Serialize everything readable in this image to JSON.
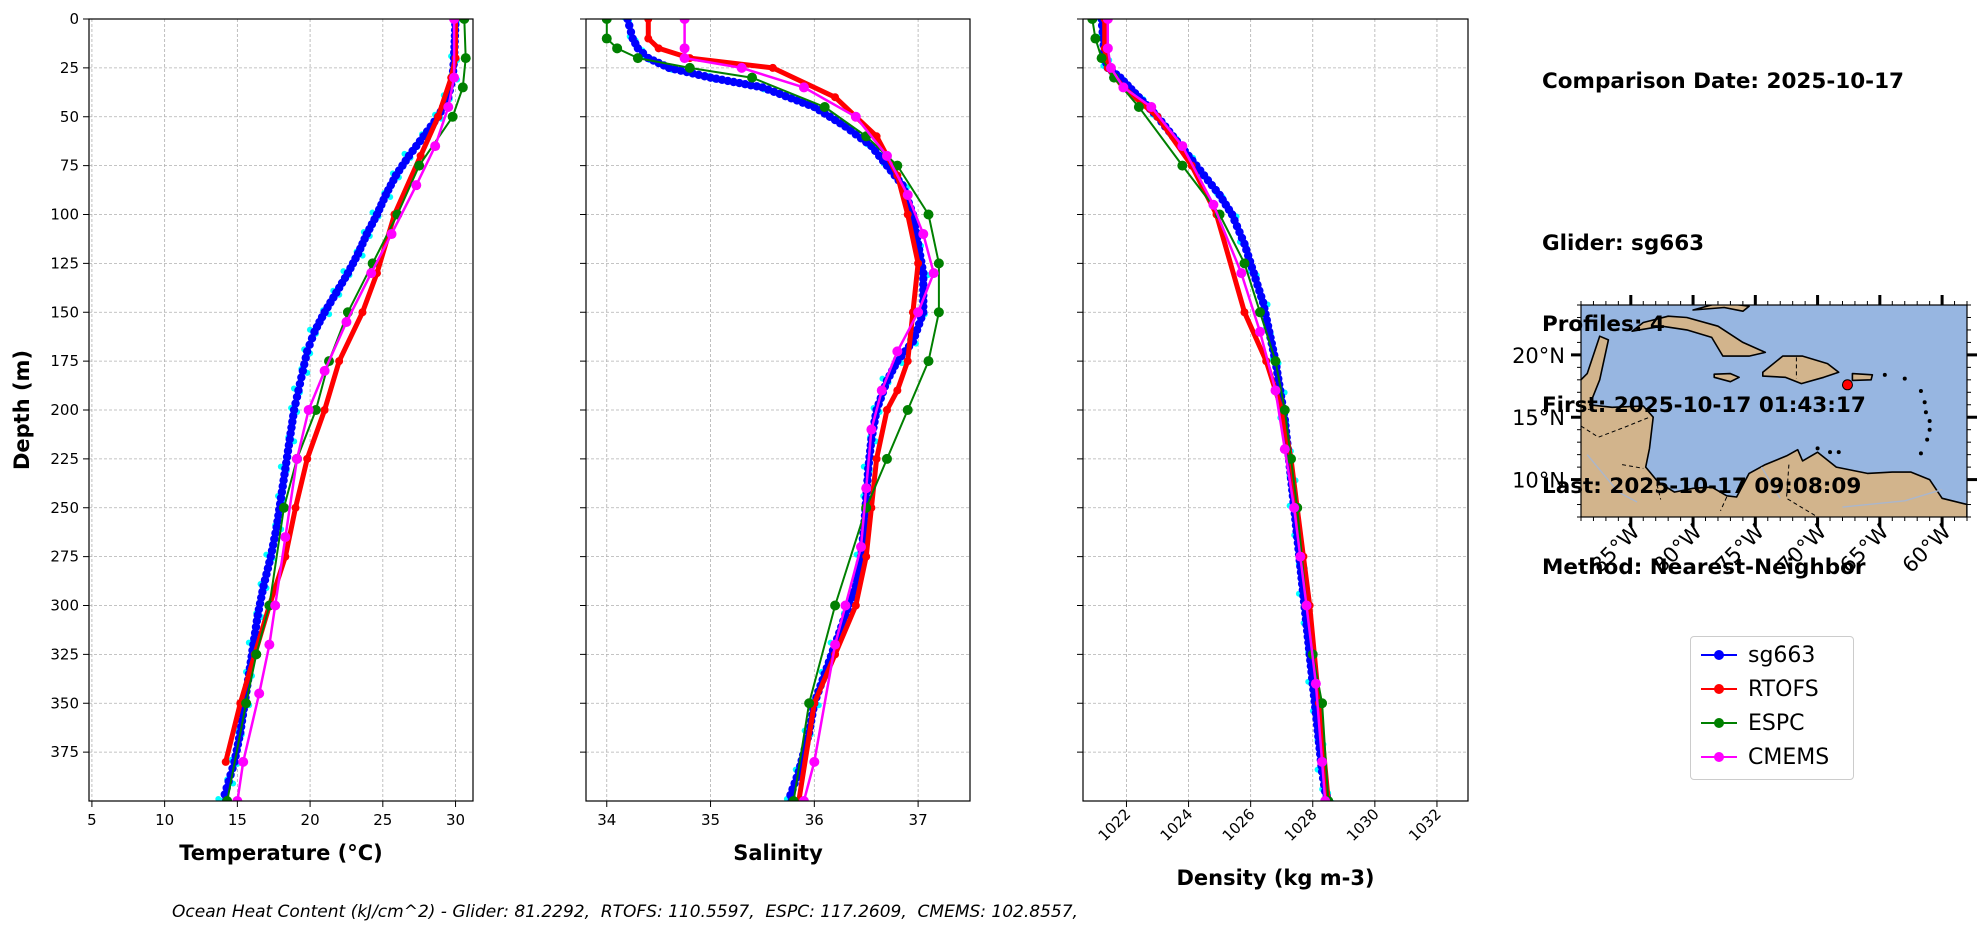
{
  "info": {
    "comparison_date": "Comparison Date: 2025-10-17",
    "glider": "Glider: sg663",
    "profiles": "Profiles: 4",
    "first": "First: 2025-10-17 01:43:17",
    "last": "Last: 2025-10-17 09:08:09",
    "method": "Method: Nearest-Neighbor"
  },
  "footer": "Ocean Heat Content (kJ/cm^2) - Glider: 81.2292,  RTOFS: 110.5597,  ESPC: 117.2609,  CMEMS: 102.8557,",
  "legend": [
    {
      "label": "sg663",
      "color": "#0000ff"
    },
    {
      "label": "RTOFS",
      "color": "#ff0000"
    },
    {
      "label": "ESPC",
      "color": "#008000"
    },
    {
      "label": "CMEMS",
      "color": "#ff00ff"
    }
  ],
  "chart_data": [
    {
      "type": "line",
      "xlabel": "Temperature (°C)",
      "ylabel": "Depth (m)",
      "xlim": [
        4.8,
        31.2
      ],
      "ylim": [
        400,
        0
      ],
      "xticks": [
        5,
        10,
        15,
        20,
        25,
        30
      ],
      "yticks": [
        0,
        25,
        50,
        75,
        100,
        125,
        150,
        175,
        200,
        225,
        250,
        275,
        300,
        325,
        350,
        375
      ],
      "grid": true,
      "series": [
        {
          "name": "sg663",
          "color": "#0000ff",
          "profile_color": "#00ffff",
          "x": [
            30.0,
            29.9,
            29.8,
            29.5,
            28.8,
            27.8,
            26.8,
            25.9,
            25.2,
            24.6,
            23.9,
            23.3,
            22.6,
            21.8,
            21.0,
            20.3,
            19.8,
            19.5,
            19.2,
            18.9,
            18.6,
            18.3,
            18.0,
            17.7,
            17.3,
            16.8,
            16.4,
            16.1,
            15.8,
            15.5,
            15.2,
            14.8,
            14.4,
            14.0
          ],
          "y": [
            0,
            20,
            30,
            40,
            50,
            60,
            70,
            80,
            90,
            100,
            110,
            120,
            130,
            140,
            150,
            160,
            170,
            180,
            190,
            200,
            215,
            230,
            245,
            260,
            275,
            290,
            305,
            320,
            335,
            350,
            365,
            380,
            390,
            400
          ]
        },
        {
          "name": "RTOFS",
          "color": "#ff0000",
          "x": [
            30.0,
            30.0,
            29.7,
            28.8,
            27.6,
            25.8,
            24.6,
            23.6,
            22.0,
            21.0,
            19.8,
            19.0,
            18.3,
            17.2,
            16.2,
            15.2,
            14.2
          ],
          "y": [
            0,
            20,
            30,
            50,
            70,
            100,
            130,
            150,
            175,
            200,
            225,
            250,
            275,
            300,
            325,
            350,
            380
          ]
        },
        {
          "name": "ESPC",
          "color": "#008000",
          "x": [
            30.6,
            30.7,
            30.5,
            29.8,
            27.5,
            26.0,
            24.3,
            22.6,
            21.3,
            20.4,
            19.1,
            18.2,
            17.2,
            16.3,
            15.6,
            14.3
          ],
          "y": [
            0,
            20,
            35,
            50,
            75,
            100,
            125,
            150,
            175,
            200,
            225,
            250,
            300,
            325,
            350,
            400
          ]
        },
        {
          "name": "CMEMS",
          "color": "#ff00ff",
          "x": [
            29.9,
            29.9,
            29.5,
            28.6,
            27.3,
            25.6,
            24.2,
            22.5,
            21.0,
            19.9,
            19.1,
            18.3,
            17.6,
            17.2,
            16.5,
            15.4,
            15.0
          ],
          "y": [
            0,
            30,
            45,
            65,
            85,
            110,
            130,
            155,
            180,
            200,
            225,
            265,
            300,
            320,
            345,
            380,
            400
          ]
        }
      ]
    },
    {
      "type": "line",
      "xlabel": "Salinity",
      "ylabel": "",
      "xlim": [
        33.8,
        37.5
      ],
      "ylim": [
        400,
        0
      ],
      "xticks": [
        34,
        35,
        36,
        37
      ],
      "yticks": [
        0,
        25,
        50,
        75,
        100,
        125,
        150,
        175,
        200,
        225,
        250,
        275,
        300,
        325,
        350,
        375
      ],
      "grid": true,
      "series": [
        {
          "name": "sg663",
          "color": "#0000ff",
          "profile_color": "#00ffff",
          "x": [
            34.2,
            34.25,
            34.3,
            34.4,
            34.6,
            35.0,
            35.5,
            36.0,
            36.3,
            36.55,
            36.7,
            36.85,
            36.95,
            37.0,
            37.05,
            37.05,
            36.95,
            36.8,
            36.7,
            36.6,
            36.55,
            36.52,
            36.5,
            36.48,
            36.45,
            36.4,
            36.3,
            36.2,
            36.1,
            36.0,
            35.95,
            35.85,
            35.75
          ],
          "y": [
            0,
            10,
            15,
            20,
            25,
            30,
            35,
            45,
            55,
            65,
            75,
            85,
            100,
            115,
            130,
            150,
            165,
            175,
            185,
            200,
            215,
            230,
            245,
            260,
            275,
            290,
            305,
            320,
            335,
            350,
            365,
            385,
            400
          ]
        },
        {
          "name": "RTOFS",
          "color": "#ff0000",
          "x": [
            34.4,
            34.4,
            34.5,
            34.8,
            35.6,
            36.2,
            36.6,
            36.8,
            36.9,
            37.0,
            36.95,
            36.9,
            36.8,
            36.7,
            36.6,
            36.55,
            36.5,
            36.4,
            36.2,
            36.0,
            35.85
          ],
          "y": [
            0,
            10,
            15,
            20,
            25,
            40,
            60,
            80,
            100,
            125,
            150,
            175,
            190,
            200,
            225,
            250,
            275,
            300,
            325,
            350,
            400
          ]
        },
        {
          "name": "ESPC",
          "color": "#008000",
          "x": [
            34.0,
            34.0,
            34.1,
            34.3,
            34.8,
            35.4,
            36.1,
            36.5,
            36.8,
            37.1,
            37.2,
            37.2,
            37.1,
            36.9,
            36.7,
            36.5,
            36.2,
            35.95,
            35.8
          ],
          "y": [
            0,
            10,
            15,
            20,
            25,
            30,
            45,
            60,
            75,
            100,
            125,
            150,
            175,
            200,
            225,
            250,
            300,
            350,
            400
          ]
        },
        {
          "name": "CMEMS",
          "color": "#ff00ff",
          "x": [
            34.75,
            34.75,
            34.75,
            35.3,
            35.9,
            36.4,
            36.7,
            36.9,
            37.05,
            37.15,
            37.0,
            36.8,
            36.65,
            36.55,
            36.5,
            36.45,
            36.3,
            36.2,
            36.0,
            35.9
          ],
          "y": [
            0,
            15,
            20,
            25,
            35,
            50,
            70,
            90,
            110,
            130,
            150,
            170,
            190,
            210,
            240,
            270,
            300,
            320,
            380,
            400
          ]
        }
      ]
    },
    {
      "type": "line",
      "xlabel": "Density (kg m-3)",
      "ylabel": "",
      "xlim": [
        1020.6,
        1033.0
      ],
      "ylim": [
        400,
        0
      ],
      "xticks": [
        1022,
        1024,
        1026,
        1028,
        1030,
        1032
      ],
      "yticks": [
        0,
        25,
        50,
        75,
        100,
        125,
        150,
        175,
        200,
        225,
        250,
        275,
        300,
        325,
        350,
        375
      ],
      "grid": true,
      "series": [
        {
          "name": "sg663",
          "color": "#0000ff",
          "profile_color": "#00ffff",
          "x": [
            1021.2,
            1021.25,
            1021.3,
            1021.4,
            1021.8,
            1022.4,
            1023.0,
            1023.5,
            1024.0,
            1024.5,
            1025.0,
            1025.4,
            1025.8,
            1026.1,
            1026.4,
            1026.6,
            1026.8,
            1026.95,
            1027.1,
            1027.2,
            1027.3,
            1027.4,
            1027.5,
            1027.6,
            1027.7,
            1027.8,
            1027.9,
            1028.0,
            1028.1,
            1028.2,
            1028.3,
            1028.4,
            1028.5
          ],
          "y": [
            0,
            10,
            20,
            25,
            30,
            40,
            50,
            60,
            70,
            80,
            90,
            100,
            115,
            130,
            145,
            160,
            175,
            190,
            205,
            220,
            235,
            250,
            265,
            280,
            295,
            310,
            325,
            340,
            355,
            370,
            385,
            395,
            400
          ]
        },
        {
          "name": "RTOFS",
          "color": "#ff0000",
          "x": [
            1021.3,
            1021.3,
            1021.4,
            1021.9,
            1023.0,
            1024.1,
            1024.9,
            1025.8,
            1026.5,
            1027.0,
            1027.3,
            1027.5,
            1027.7,
            1027.9,
            1028.2,
            1028.5
          ],
          "y": [
            0,
            15,
            25,
            35,
            50,
            75,
            100,
            150,
            175,
            200,
            225,
            250,
            275,
            300,
            350,
            400
          ]
        },
        {
          "name": "ESPC",
          "color": "#008000",
          "x": [
            1020.9,
            1021.0,
            1021.2,
            1021.6,
            1022.4,
            1023.8,
            1025.0,
            1025.8,
            1026.3,
            1026.8,
            1027.1,
            1027.3,
            1027.5,
            1027.8,
            1028.0,
            1028.3,
            1028.5
          ],
          "y": [
            0,
            10,
            20,
            30,
            45,
            75,
            100,
            125,
            150,
            175,
            200,
            225,
            250,
            300,
            325,
            350,
            400
          ]
        },
        {
          "name": "CMEMS",
          "color": "#ff00ff",
          "x": [
            1021.4,
            1021.4,
            1021.5,
            1021.9,
            1022.8,
            1023.8,
            1024.8,
            1025.7,
            1026.3,
            1026.8,
            1027.1,
            1027.4,
            1027.6,
            1027.8,
            1028.1,
            1028.3,
            1028.4
          ],
          "y": [
            0,
            15,
            25,
            35,
            45,
            65,
            95,
            130,
            160,
            190,
            220,
            250,
            275,
            300,
            340,
            380,
            400
          ]
        }
      ]
    }
  ],
  "map": {
    "lat_labels": [
      "20°N",
      "15°N",
      "10°N"
    ],
    "lat_values": [
      20,
      15,
      10
    ],
    "lon_labels": [
      "85°W",
      "80°W",
      "75°W",
      "70°W",
      "65°W",
      "60°W"
    ],
    "lon_values": [
      -85,
      -80,
      -75,
      -70,
      -65,
      -60
    ],
    "lon_range": [
      -89,
      -58
    ],
    "lat_range": [
      7,
      24
    ],
    "glider_position": {
      "lon": -67.6,
      "lat": 17.6
    },
    "ocean_color": "#97b6e1",
    "land_color": "#d2b48c",
    "marker_color": "#ff0000"
  }
}
